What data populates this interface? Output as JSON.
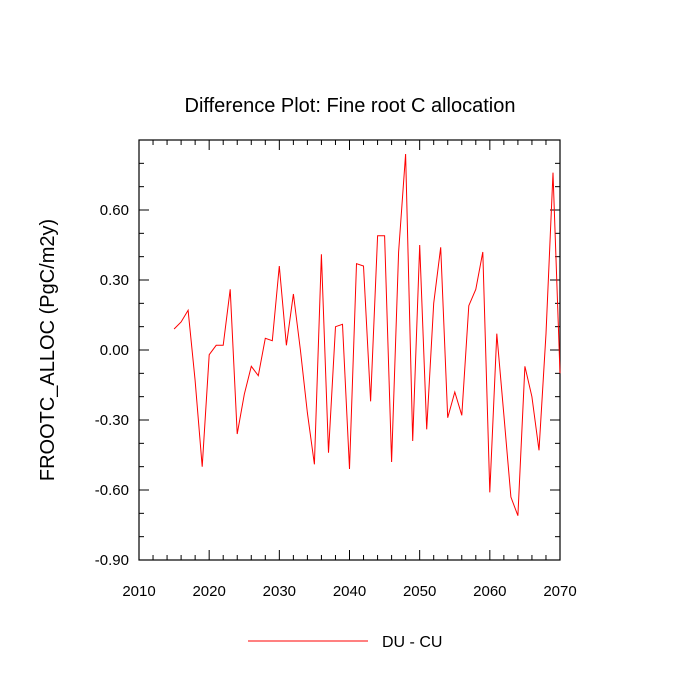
{
  "chart_data": {
    "type": "line",
    "title": "Difference Plot: Fine root C allocation",
    "xlabel": "",
    "ylabel": "FROOTC_ALLOC  (PgC/m2y)",
    "xlim": [
      2010,
      2070
    ],
    "ylim": [
      -0.9,
      0.9
    ],
    "x_ticks": [
      2010,
      2020,
      2030,
      2040,
      2050,
      2060,
      2070
    ],
    "x_tick_labels": [
      "2010",
      "2020",
      "2030",
      "2040",
      "2050",
      "2060",
      "2070"
    ],
    "y_ticks": [
      -0.9,
      -0.6,
      -0.3,
      0.0,
      0.3,
      0.6
    ],
    "y_tick_labels": [
      "-0.90",
      "-0.60",
      "-0.30",
      "0.00",
      "0.30",
      "0.60"
    ],
    "legend_position": "bottom-center",
    "series": [
      {
        "name": "DU - CU",
        "color": "#ff0000",
        "x": [
          2015,
          2016,
          2017,
          2018,
          2019,
          2020,
          2021,
          2022,
          2023,
          2024,
          2025,
          2026,
          2027,
          2028,
          2029,
          2030,
          2031,
          2032,
          2033,
          2034,
          2035,
          2036,
          2037,
          2038,
          2039,
          2040,
          2041,
          2042,
          2043,
          2044,
          2045,
          2046,
          2047,
          2048,
          2049,
          2050,
          2051,
          2052,
          2053,
          2054,
          2055,
          2056,
          2057,
          2058,
          2059,
          2060,
          2061,
          2062,
          2063,
          2064,
          2065,
          2066,
          2067,
          2068,
          2069,
          2070
        ],
        "y": [
          0.09,
          0.12,
          0.17,
          -0.13,
          -0.5,
          -0.02,
          0.02,
          0.02,
          0.26,
          -0.36,
          -0.19,
          -0.07,
          -0.11,
          0.05,
          0.04,
          0.36,
          0.02,
          0.24,
          0.0,
          -0.27,
          -0.49,
          0.41,
          -0.44,
          0.1,
          0.11,
          -0.51,
          0.37,
          0.36,
          -0.22,
          0.49,
          0.49,
          -0.48,
          0.42,
          0.84,
          -0.39,
          0.45,
          -0.34,
          0.2,
          0.44,
          -0.29,
          -0.18,
          -0.28,
          0.19,
          0.26,
          0.42,
          -0.61,
          0.07,
          -0.28,
          -0.63,
          -0.71,
          -0.07,
          -0.2,
          -0.43,
          0.07,
          0.76,
          -0.1
        ]
      }
    ]
  }
}
